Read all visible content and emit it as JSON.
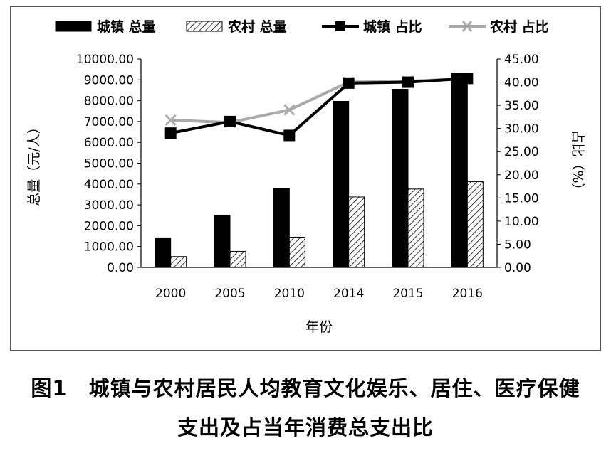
{
  "chart_data": {
    "type": "bar",
    "categories": [
      "2000",
      "2005",
      "2010",
      "2014",
      "2015",
      "2016"
    ],
    "series": [
      {
        "name": "城镇 总量",
        "kind": "bar",
        "axis": "left",
        "style": "solid-black",
        "values": [
          1420,
          2510,
          3800,
          7970,
          8550,
          9310
        ]
      },
      {
        "name": "农村 总量",
        "kind": "bar",
        "axis": "left",
        "style": "hatched",
        "values": [
          520,
          770,
          1450,
          3380,
          3760,
          4110
        ]
      },
      {
        "name": "城镇 占比",
        "kind": "line",
        "axis": "right",
        "color": "#000000",
        "marker": "square",
        "values": [
          29.0,
          31.5,
          28.5,
          39.8,
          40.0,
          40.8
        ]
      },
      {
        "name": "农村 占比",
        "kind": "line",
        "axis": "right",
        "color": "#aaaaaa",
        "marker": "x",
        "values": [
          31.8,
          31.3,
          34.0,
          40.0,
          40.2,
          40.8
        ]
      }
    ],
    "xlabel": "年份",
    "ylabel": "总量（元/人）",
    "y2label": "占比（%）",
    "ylim": [
      0,
      10000
    ],
    "y2lim": [
      0,
      45
    ],
    "yticks": [
      "0.00",
      "1000.00",
      "2000.00",
      "3000.00",
      "4000.00",
      "5000.00",
      "6000.00",
      "7000.00",
      "8000.00",
      "9000.00",
      "10000.00"
    ],
    "y2ticks": [
      "0.00",
      "5.00",
      "10.00",
      "15.00",
      "20.00",
      "25.00",
      "30.00",
      "35.00",
      "40.00",
      "45.00"
    ],
    "legend_position": "top",
    "grid": false
  },
  "caption": {
    "line1": "图1　城镇与农村居民人均教育文化娱乐、居住、医疗保健",
    "line2": "支出及占当年消费总支出比"
  }
}
